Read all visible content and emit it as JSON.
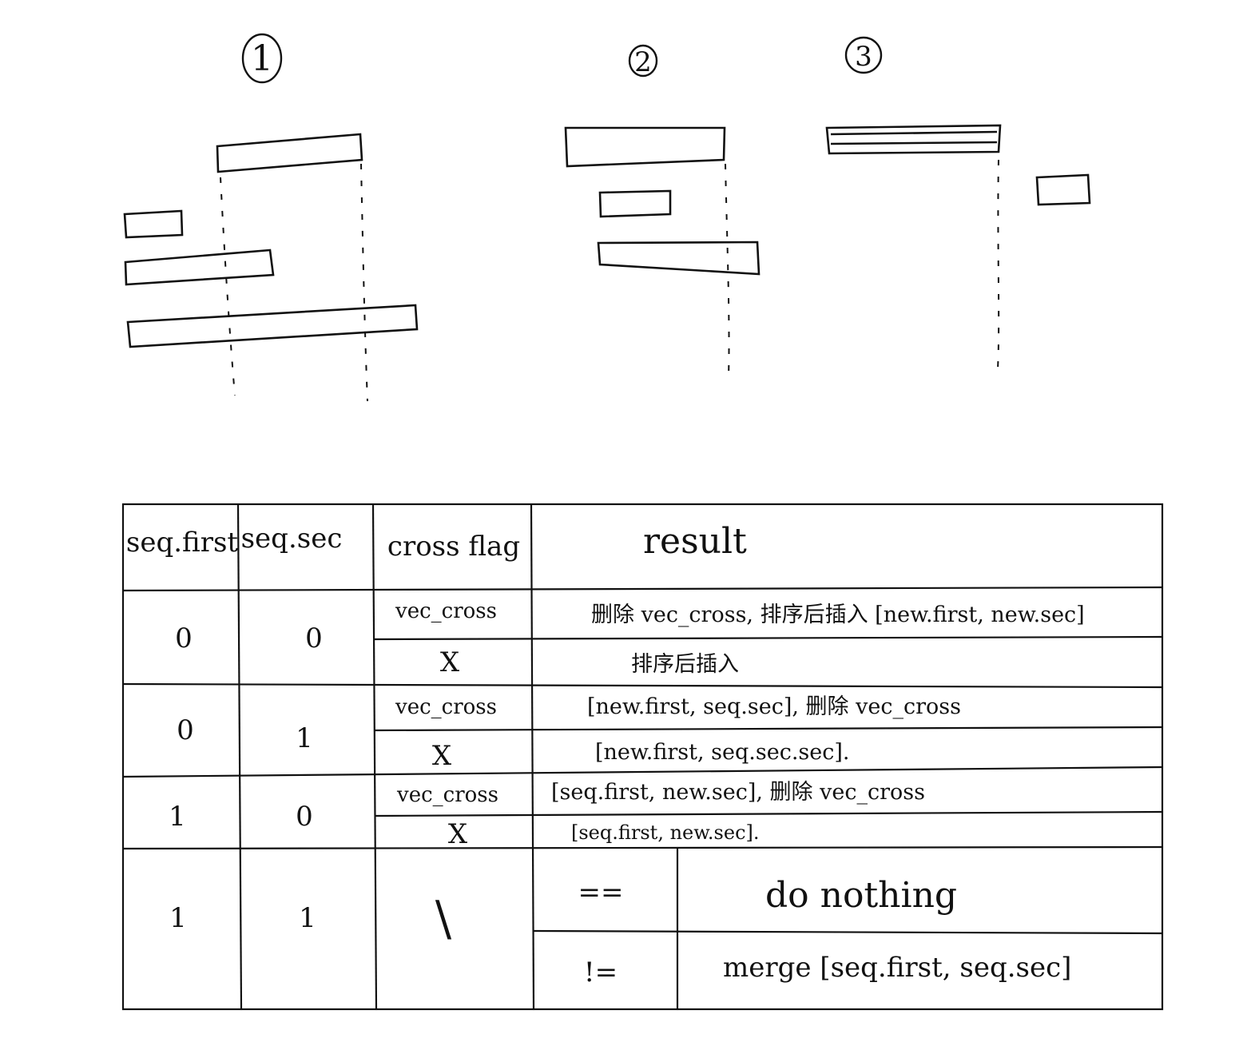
{
  "diagrams": [
    {
      "label": "1"
    },
    {
      "label": "2"
    },
    {
      "label": "3"
    }
  ],
  "table": {
    "headers": [
      "seq.first",
      "seq.sec",
      "cross flag",
      "result"
    ],
    "rows": [
      {
        "first": "0",
        "sec": "0",
        "cases": [
          {
            "flag": "vec_cross",
            "result": "删除 vec_cross, 排序后插入 [new.first, new.sec]"
          },
          {
            "flag": "X",
            "result": "排序后插入"
          }
        ]
      },
      {
        "first": "0",
        "sec": "1",
        "cases": [
          {
            "flag": "vec_cross",
            "result": "[new.first, seq.sec], 删除 vec_cross"
          },
          {
            "flag": "X",
            "result": "[new.first, seq.sec.sec]."
          }
        ]
      },
      {
        "first": "1",
        "sec": "0",
        "cases": [
          {
            "flag": "vec_cross",
            "result": "[seq.first, new.sec], 删除 vec_cross"
          },
          {
            "flag": "X",
            "result": "[seq.first, new.sec]."
          }
        ]
      },
      {
        "first": "1",
        "sec": "1",
        "flag": "\\",
        "cases": [
          {
            "cmp": "==",
            "result": "do nothing"
          },
          {
            "cmp": "!=",
            "result": "merge [seq.first, seq.sec]"
          }
        ]
      }
    ]
  }
}
